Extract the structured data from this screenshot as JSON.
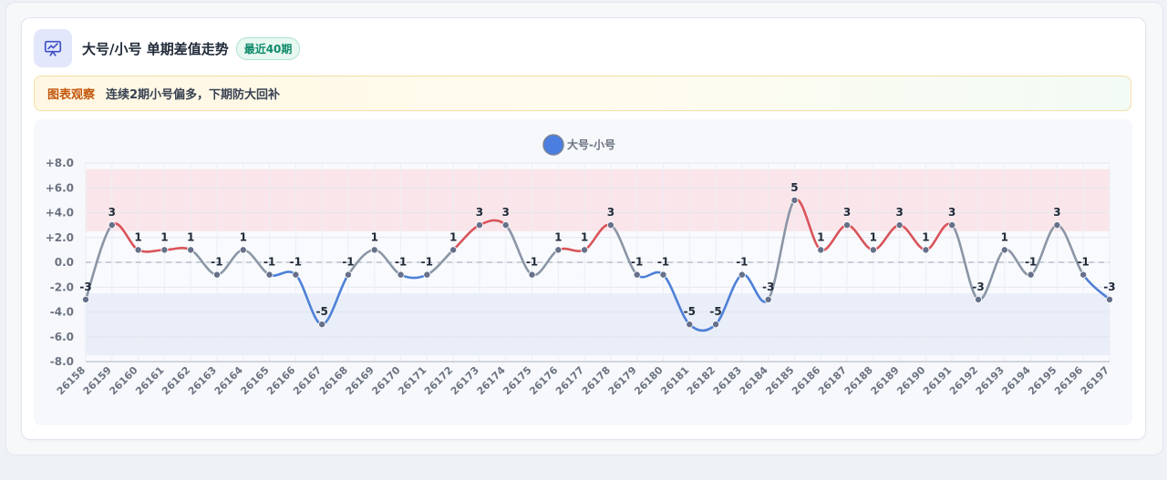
{
  "header": {
    "title": "大号/小号 单期差值走势",
    "badge": "最近40期",
    "icon": "presentation-chart-icon"
  },
  "notice": {
    "label": "图表观察",
    "text": "连续2期小号偏多，下期防大回补"
  },
  "chart_data": {
    "type": "line",
    "title": "",
    "xlabel": "",
    "ylabel": "",
    "legend": {
      "placement": "top-center",
      "entries": [
        "大号-小号"
      ]
    },
    "series": [
      {
        "name": "大号-小号",
        "values": [
          -3,
          3,
          1,
          1,
          1,
          -1,
          1,
          -1,
          -1,
          -5,
          -1,
          1,
          -1,
          -1,
          1,
          3,
          3,
          -1,
          1,
          1,
          3,
          -1,
          -1,
          -5,
          -5,
          -1,
          -3,
          5,
          1,
          3,
          1,
          3,
          1,
          3,
          -3,
          1,
          -1,
          3,
          -1,
          -3
        ]
      }
    ],
    "categories": [
      "26158",
      "26159",
      "26160",
      "26161",
      "26162",
      "26163",
      "26164",
      "26165",
      "26166",
      "26167",
      "26168",
      "26169",
      "26170",
      "26171",
      "26172",
      "26173",
      "26174",
      "26175",
      "26176",
      "26177",
      "26178",
      "26179",
      "26180",
      "26181",
      "26182",
      "26183",
      "26184",
      "26185",
      "26186",
      "26187",
      "26188",
      "26189",
      "26190",
      "26191",
      "26192",
      "26193",
      "26194",
      "26195",
      "26196",
      "26197"
    ],
    "ylim": [
      -8,
      8
    ],
    "yticks": [
      8,
      6,
      4,
      2,
      0,
      -2,
      -4,
      -6,
      -8
    ],
    "ytick_labels": [
      "+8.0",
      "+6.0",
      "+4.0",
      "+2.0",
      "0.0",
      "-2.0",
      "-4.0",
      "-6.0",
      "-8.0"
    ],
    "bands": [
      {
        "from": 2.5,
        "to": 7.5,
        "color": "#fae6ea"
      },
      {
        "from": -7.5,
        "to": -2.5,
        "color": "#e9eef9"
      }
    ],
    "zero_line": true,
    "grid": true,
    "colors": {
      "positive": "#d9535a",
      "negative": "#4e80d6",
      "neutral": "#8a95a5",
      "point": "#66708a",
      "legend_dot": "#4a7ee0"
    }
  }
}
